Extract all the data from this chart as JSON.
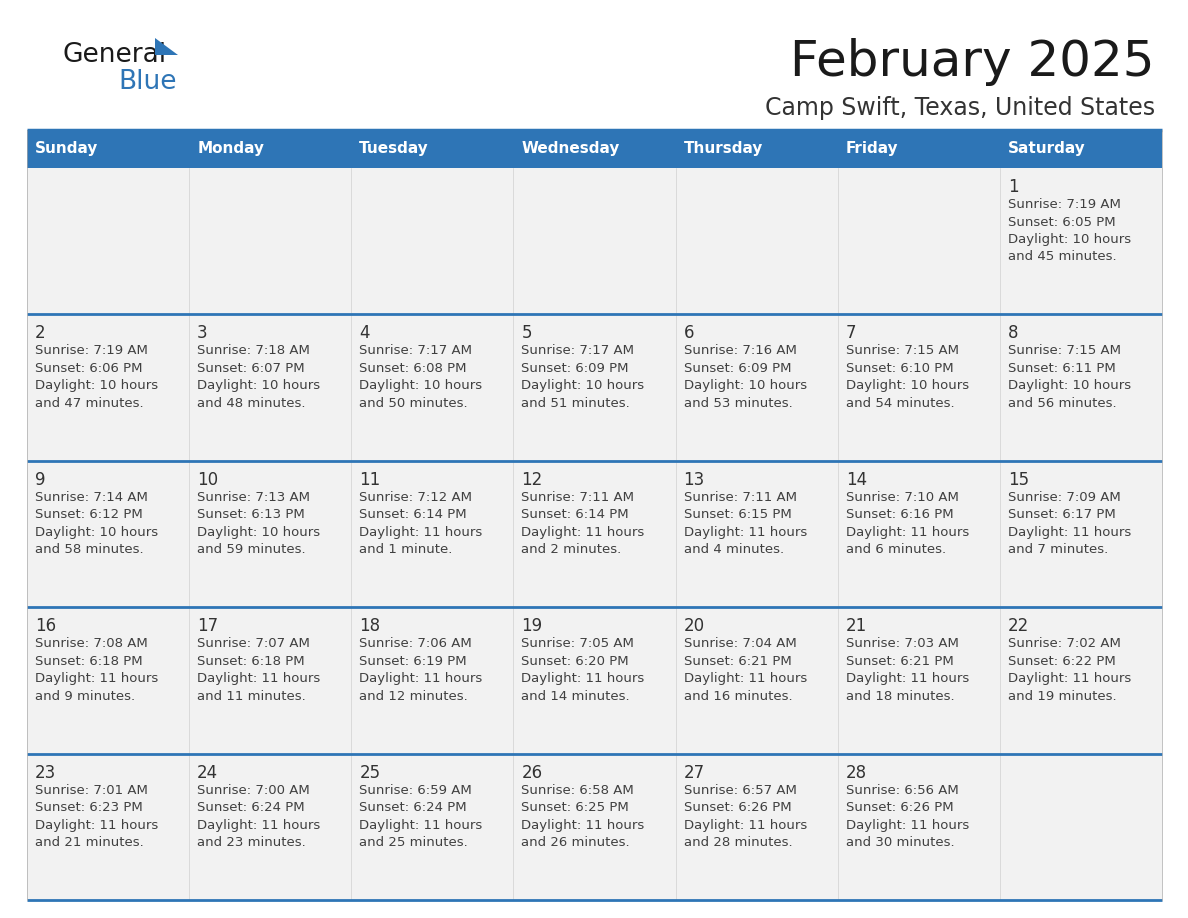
{
  "title": "February 2025",
  "subtitle": "Camp Swift, Texas, United States",
  "header_bg": "#2E75B6",
  "header_text": "#FFFFFF",
  "cell_bg": "#F2F2F2",
  "cell_text_color": "#404040",
  "day_number_color": "#333333",
  "separator_color": "#2E75B6",
  "days_of_week": [
    "Sunday",
    "Monday",
    "Tuesday",
    "Wednesday",
    "Thursday",
    "Friday",
    "Saturday"
  ],
  "calendar_data": [
    [
      null,
      null,
      null,
      null,
      null,
      null,
      {
        "day": "1",
        "lines": [
          "Sunrise: 7:19 AM",
          "Sunset: 6:05 PM",
          "Daylight: 10 hours",
          "and 45 minutes."
        ]
      }
    ],
    [
      {
        "day": "2",
        "lines": [
          "Sunrise: 7:19 AM",
          "Sunset: 6:06 PM",
          "Daylight: 10 hours",
          "and 47 minutes."
        ]
      },
      {
        "day": "3",
        "lines": [
          "Sunrise: 7:18 AM",
          "Sunset: 6:07 PM",
          "Daylight: 10 hours",
          "and 48 minutes."
        ]
      },
      {
        "day": "4",
        "lines": [
          "Sunrise: 7:17 AM",
          "Sunset: 6:08 PM",
          "Daylight: 10 hours",
          "and 50 minutes."
        ]
      },
      {
        "day": "5",
        "lines": [
          "Sunrise: 7:17 AM",
          "Sunset: 6:09 PM",
          "Daylight: 10 hours",
          "and 51 minutes."
        ]
      },
      {
        "day": "6",
        "lines": [
          "Sunrise: 7:16 AM",
          "Sunset: 6:09 PM",
          "Daylight: 10 hours",
          "and 53 minutes."
        ]
      },
      {
        "day": "7",
        "lines": [
          "Sunrise: 7:15 AM",
          "Sunset: 6:10 PM",
          "Daylight: 10 hours",
          "and 54 minutes."
        ]
      },
      {
        "day": "8",
        "lines": [
          "Sunrise: 7:15 AM",
          "Sunset: 6:11 PM",
          "Daylight: 10 hours",
          "and 56 minutes."
        ]
      }
    ],
    [
      {
        "day": "9",
        "lines": [
          "Sunrise: 7:14 AM",
          "Sunset: 6:12 PM",
          "Daylight: 10 hours",
          "and 58 minutes."
        ]
      },
      {
        "day": "10",
        "lines": [
          "Sunrise: 7:13 AM",
          "Sunset: 6:13 PM",
          "Daylight: 10 hours",
          "and 59 minutes."
        ]
      },
      {
        "day": "11",
        "lines": [
          "Sunrise: 7:12 AM",
          "Sunset: 6:14 PM",
          "Daylight: 11 hours",
          "and 1 minute."
        ]
      },
      {
        "day": "12",
        "lines": [
          "Sunrise: 7:11 AM",
          "Sunset: 6:14 PM",
          "Daylight: 11 hours",
          "and 2 minutes."
        ]
      },
      {
        "day": "13",
        "lines": [
          "Sunrise: 7:11 AM",
          "Sunset: 6:15 PM",
          "Daylight: 11 hours",
          "and 4 minutes."
        ]
      },
      {
        "day": "14",
        "lines": [
          "Sunrise: 7:10 AM",
          "Sunset: 6:16 PM",
          "Daylight: 11 hours",
          "and 6 minutes."
        ]
      },
      {
        "day": "15",
        "lines": [
          "Sunrise: 7:09 AM",
          "Sunset: 6:17 PM",
          "Daylight: 11 hours",
          "and 7 minutes."
        ]
      }
    ],
    [
      {
        "day": "16",
        "lines": [
          "Sunrise: 7:08 AM",
          "Sunset: 6:18 PM",
          "Daylight: 11 hours",
          "and 9 minutes."
        ]
      },
      {
        "day": "17",
        "lines": [
          "Sunrise: 7:07 AM",
          "Sunset: 6:18 PM",
          "Daylight: 11 hours",
          "and 11 minutes."
        ]
      },
      {
        "day": "18",
        "lines": [
          "Sunrise: 7:06 AM",
          "Sunset: 6:19 PM",
          "Daylight: 11 hours",
          "and 12 minutes."
        ]
      },
      {
        "day": "19",
        "lines": [
          "Sunrise: 7:05 AM",
          "Sunset: 6:20 PM",
          "Daylight: 11 hours",
          "and 14 minutes."
        ]
      },
      {
        "day": "20",
        "lines": [
          "Sunrise: 7:04 AM",
          "Sunset: 6:21 PM",
          "Daylight: 11 hours",
          "and 16 minutes."
        ]
      },
      {
        "day": "21",
        "lines": [
          "Sunrise: 7:03 AM",
          "Sunset: 6:21 PM",
          "Daylight: 11 hours",
          "and 18 minutes."
        ]
      },
      {
        "day": "22",
        "lines": [
          "Sunrise: 7:02 AM",
          "Sunset: 6:22 PM",
          "Daylight: 11 hours",
          "and 19 minutes."
        ]
      }
    ],
    [
      {
        "day": "23",
        "lines": [
          "Sunrise: 7:01 AM",
          "Sunset: 6:23 PM",
          "Daylight: 11 hours",
          "and 21 minutes."
        ]
      },
      {
        "day": "24",
        "lines": [
          "Sunrise: 7:00 AM",
          "Sunset: 6:24 PM",
          "Daylight: 11 hours",
          "and 23 minutes."
        ]
      },
      {
        "day": "25",
        "lines": [
          "Sunrise: 6:59 AM",
          "Sunset: 6:24 PM",
          "Daylight: 11 hours",
          "and 25 minutes."
        ]
      },
      {
        "day": "26",
        "lines": [
          "Sunrise: 6:58 AM",
          "Sunset: 6:25 PM",
          "Daylight: 11 hours",
          "and 26 minutes."
        ]
      },
      {
        "day": "27",
        "lines": [
          "Sunrise: 6:57 AM",
          "Sunset: 6:26 PM",
          "Daylight: 11 hours",
          "and 28 minutes."
        ]
      },
      {
        "day": "28",
        "lines": [
          "Sunrise: 6:56 AM",
          "Sunset: 6:26 PM",
          "Daylight: 11 hours",
          "and 30 minutes."
        ]
      },
      null
    ]
  ]
}
